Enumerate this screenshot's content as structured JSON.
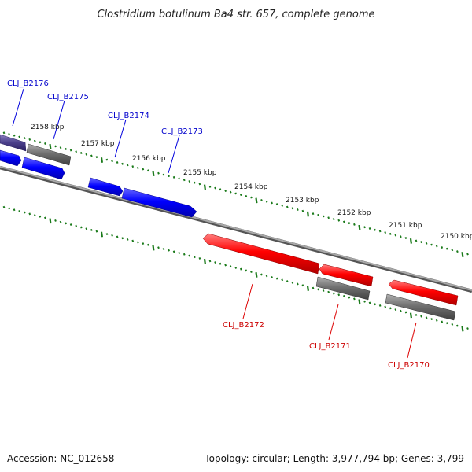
{
  "title": "Clostridium botulinum Ba4 str. 657, complete genome",
  "footer": {
    "accession": "Accession: NC_012658",
    "stats": "Topology: circular; Length: 3,977,794 bp; Genes: 3,799"
  },
  "colors": {
    "forward_gene": "#0000ff",
    "reverse_gene": "#ff0000",
    "label_forward": "#0000cc",
    "label_reverse": "#cc0000",
    "tick": "#1a7a1a",
    "backbone": "#888888",
    "grey_feature": "#666666"
  },
  "ruler": [
    "2158 kbp",
    "2157 kbp",
    "2156 kbp",
    "2155 kbp",
    "2154 kbp",
    "2153 kbp",
    "2152 kbp",
    "2151 kbp",
    "2150 kbp"
  ],
  "genes": [
    {
      "id": "CLJ_B2176",
      "strand": "forward"
    },
    {
      "id": "CLJ_B2175",
      "strand": "forward"
    },
    {
      "id": "CLJ_B2174",
      "strand": "forward"
    },
    {
      "id": "CLJ_B2173",
      "strand": "forward"
    },
    {
      "id": "CLJ_B2172",
      "strand": "reverse"
    },
    {
      "id": "CLJ_B2171",
      "strand": "reverse"
    },
    {
      "id": "CLJ_B2170",
      "strand": "reverse"
    }
  ]
}
